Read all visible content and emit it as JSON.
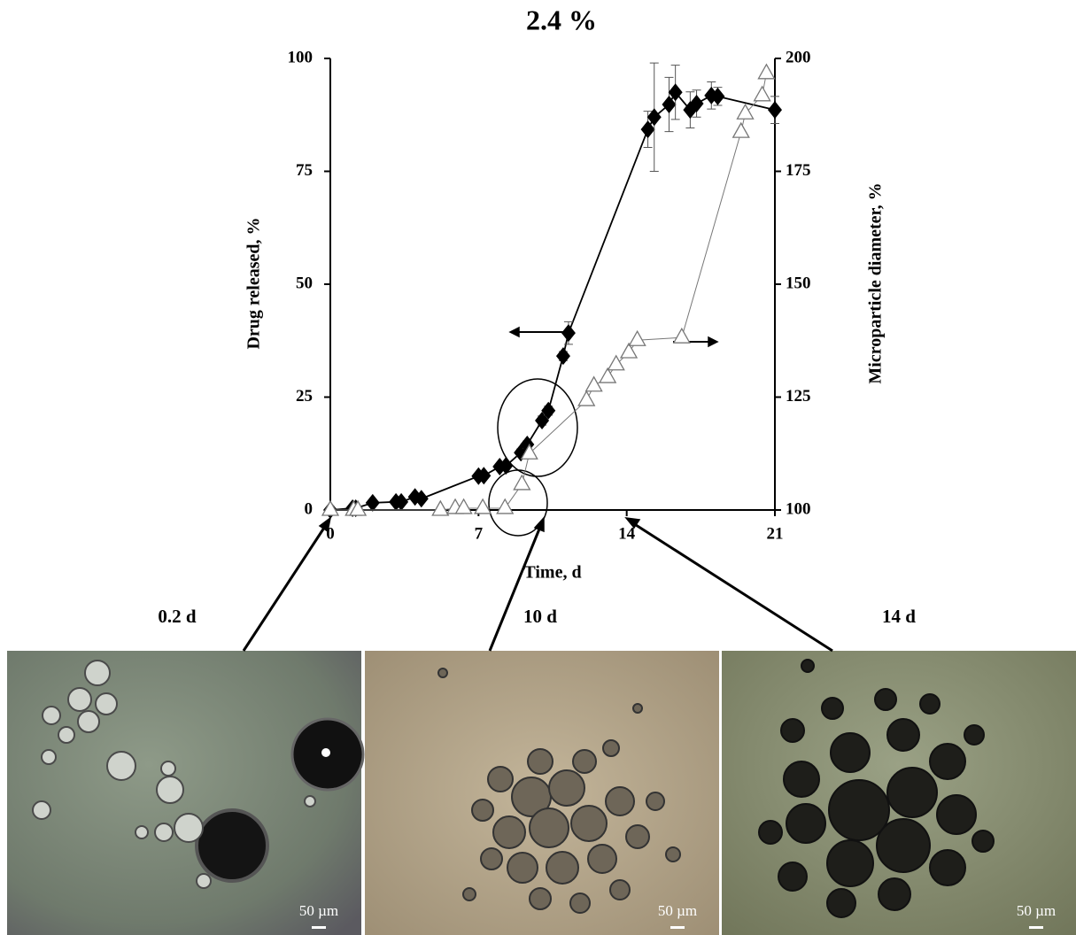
{
  "chart_data": {
    "type": "line",
    "title": "2.4 %",
    "x_label": "Time, d",
    "y_label": "Drug released, %",
    "y2_label": "Microparticle diameter, %",
    "xlim": [
      0,
      21
    ],
    "xticks": [
      0,
      7,
      14,
      21
    ],
    "ylim": [
      0,
      100
    ],
    "yticks": [
      0,
      25,
      50,
      75,
      100
    ],
    "y2lim": [
      100,
      200
    ],
    "y2ticks": [
      100,
      125,
      150,
      175,
      200
    ],
    "series": [
      {
        "name": "Drug released",
        "color": "#000000",
        "marker": "diamond",
        "x": [
          0,
          1.05,
          1.2,
          2,
          3.1,
          3.35,
          4,
          4.3,
          7,
          7.25,
          8,
          8.3,
          9,
          9.3,
          10,
          10.3,
          11,
          11.25,
          15,
          15.3,
          16,
          16.3,
          17,
          17.3,
          18,
          18.3,
          21
        ],
        "values": [
          0,
          0.4,
          0.4,
          1.6,
          1.8,
          1.8,
          2.9,
          2.5,
          7.5,
          7.6,
          9.6,
          9.8,
          12.7,
          14.5,
          19.8,
          22,
          34.1,
          39.2,
          84.3,
          87,
          89.8,
          92.5,
          88.6,
          90,
          91.8,
          91.6,
          88.6
        ],
        "errors": [
          0.3,
          0.3,
          0.3,
          0.3,
          0.3,
          0.3,
          0.3,
          0.3,
          0.5,
          0.5,
          0.5,
          0.5,
          0.8,
          0.8,
          1,
          1,
          1,
          2.5,
          4,
          12,
          6,
          6,
          4,
          3,
          3,
          2,
          3
        ]
      },
      {
        "name": "Microparticle diameter",
        "color": "#777777",
        "marker": "triangle",
        "axis": "y2",
        "x": [
          0,
          1.1,
          1.3,
          5.2,
          5.9,
          6.3,
          7.2,
          8.25,
          9.05,
          9.4,
          12.1,
          12.45,
          13.1,
          13.5,
          14.1,
          14.5,
          16.6,
          19.4,
          19.6,
          20.4,
          20.6
        ],
        "values": [
          100,
          100,
          100,
          100,
          100.4,
          100.4,
          100.4,
          100.4,
          105.7,
          112.5,
          124.3,
          127.5,
          129.4,
          132.2,
          134.9,
          137.6,
          138.2,
          183.7,
          187.8,
          191.8,
          196.7
        ]
      }
    ],
    "panels": [
      {
        "label": "0.2 d",
        "scale": "50 µm"
      },
      {
        "label": "10 d",
        "scale": "50 µm"
      },
      {
        "label": "14 d",
        "scale": "50 µm"
      }
    ]
  }
}
